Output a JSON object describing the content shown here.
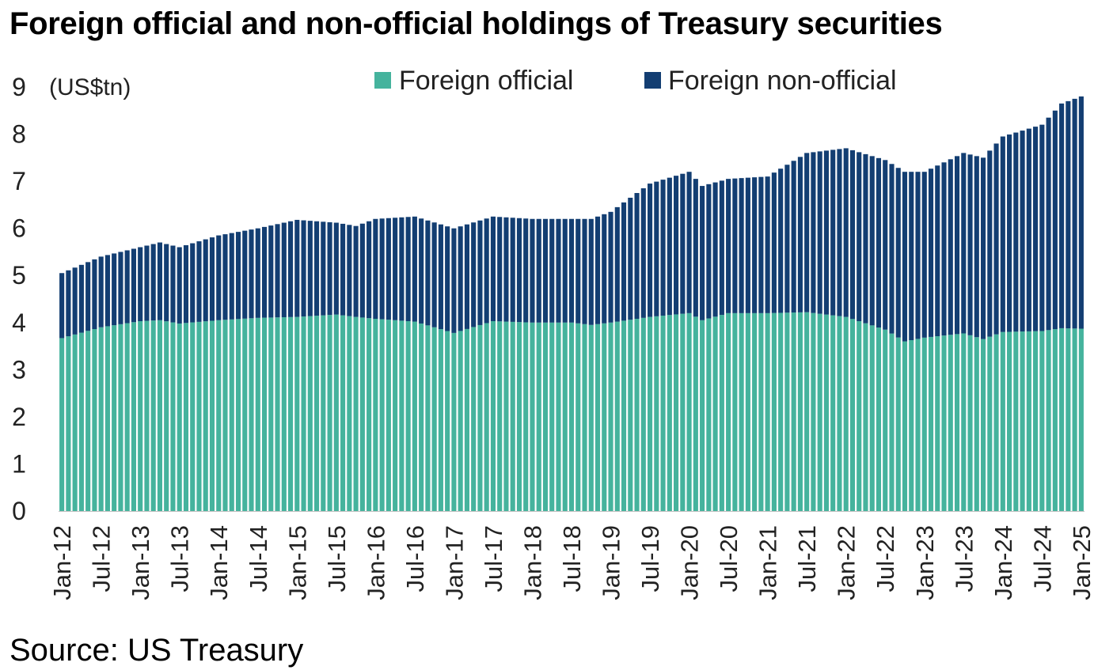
{
  "title": "Foreign official and non-official holdings of Treasury securities",
  "source": "Source: US Treasury",
  "colors": {
    "foreign_official": "#45b39d",
    "foreign_non_official": "#133e72"
  },
  "chart_data": {
    "type": "bar",
    "stacked": true,
    "unit_label": "(US$tn)",
    "ylim": [
      0,
      9
    ],
    "yticks": [
      "0",
      "1",
      "2",
      "3",
      "4",
      "5",
      "6",
      "7",
      "8",
      "9"
    ],
    "grid": false,
    "legend_position": "top",
    "x_tick_labels": [
      "Jan-12",
      "Jul-12",
      "Jan-13",
      "Jul-13",
      "Jan-14",
      "Jul-14",
      "Jan-15",
      "Jul-15",
      "Jan-16",
      "Jul-16",
      "Jan-17",
      "Jul-17",
      "Jan-18",
      "Jul-18",
      "Jan-19",
      "Jul-19",
      "Jan-20",
      "Jul-20",
      "Jan-21",
      "Jul-21",
      "Jan-22",
      "Jul-22",
      "Jan-23",
      "Jul-23",
      "Jan-24",
      "Jul-24",
      "Jan-25"
    ],
    "x_anchors": [
      {
        "date": "Jan-12",
        "official": 3.67,
        "total": 5.05
      },
      {
        "date": "Jul-12",
        "official": 3.9,
        "total": 5.4
      },
      {
        "date": "Jan-13",
        "official": 4.03,
        "total": 5.6
      },
      {
        "date": "Apr-13",
        "official": 4.05,
        "total": 5.7
      },
      {
        "date": "Jul-13",
        "official": 3.98,
        "total": 5.6
      },
      {
        "date": "Jan-14",
        "official": 4.05,
        "total": 5.85
      },
      {
        "date": "Jul-14",
        "official": 4.1,
        "total": 6.0
      },
      {
        "date": "Jan-15",
        "official": 4.12,
        "total": 6.18
      },
      {
        "date": "Jul-15",
        "official": 4.17,
        "total": 6.12
      },
      {
        "date": "Oct-15",
        "official": 4.12,
        "total": 6.05
      },
      {
        "date": "Jan-16",
        "official": 4.08,
        "total": 6.2
      },
      {
        "date": "Jul-16",
        "official": 4.02,
        "total": 6.25
      },
      {
        "date": "Jan-17",
        "official": 3.78,
        "total": 6.0
      },
      {
        "date": "Jul-17",
        "official": 4.03,
        "total": 6.25
      },
      {
        "date": "Jan-18",
        "official": 4.0,
        "total": 6.2
      },
      {
        "date": "Jul-18",
        "official": 4.0,
        "total": 6.2
      },
      {
        "date": "Oct-18",
        "official": 3.95,
        "total": 6.2
      },
      {
        "date": "Jan-19",
        "official": 4.0,
        "total": 6.35
      },
      {
        "date": "Jul-19",
        "official": 4.12,
        "total": 6.95
      },
      {
        "date": "Jan-20",
        "official": 4.2,
        "total": 7.2
      },
      {
        "date": "Mar-20",
        "official": 4.05,
        "total": 6.9
      },
      {
        "date": "Jul-20",
        "official": 4.2,
        "total": 7.05
      },
      {
        "date": "Jan-21",
        "official": 4.2,
        "total": 7.1
      },
      {
        "date": "Jul-21",
        "official": 4.22,
        "total": 7.6
      },
      {
        "date": "Jan-22",
        "official": 4.12,
        "total": 7.7
      },
      {
        "date": "Jul-22",
        "official": 3.85,
        "total": 7.45
      },
      {
        "date": "Oct-22",
        "official": 3.6,
        "total": 7.2
      },
      {
        "date": "Jan-23",
        "official": 3.68,
        "total": 7.2
      },
      {
        "date": "Jul-23",
        "official": 3.77,
        "total": 7.6
      },
      {
        "date": "Oct-23",
        "official": 3.65,
        "total": 7.5
      },
      {
        "date": "Jan-24",
        "official": 3.8,
        "total": 7.95
      },
      {
        "date": "Jul-24",
        "official": 3.82,
        "total": 8.2
      },
      {
        "date": "Oct-24",
        "official": 3.88,
        "total": 8.65
      },
      {
        "date": "Jan-25",
        "official": 3.87,
        "total": 8.8
      }
    ],
    "series": [
      {
        "name": "Foreign official"
      },
      {
        "name": "Foreign non-official"
      }
    ]
  }
}
